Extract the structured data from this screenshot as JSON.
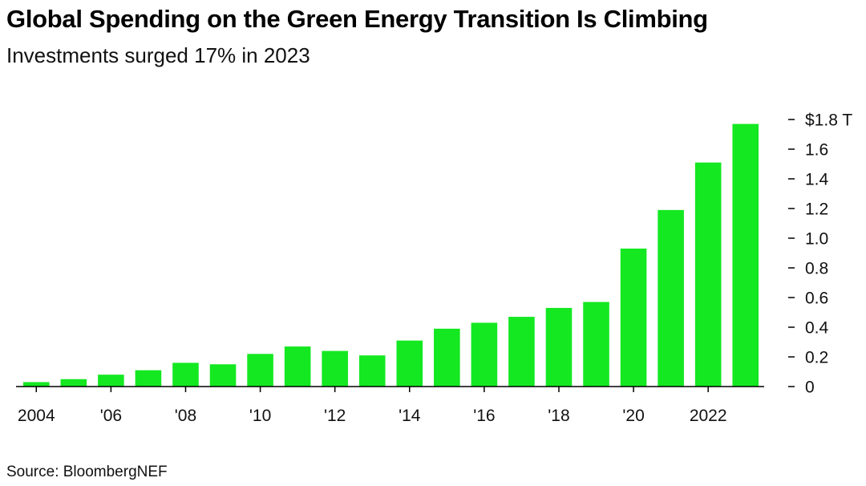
{
  "title": "Global Spending on the Green Energy Transition Is Climbing",
  "subtitle": "Investments surged 17% in 2023",
  "source": "Source: BloombergNEF",
  "colors": {
    "bar": "#14e821",
    "axis": "#000000",
    "text": "#111111"
  },
  "chart_data": {
    "type": "bar",
    "categories": [
      "2004",
      "2005",
      "2006",
      "2007",
      "2008",
      "2009",
      "2010",
      "2011",
      "2012",
      "2013",
      "2014",
      "2015",
      "2016",
      "2017",
      "2018",
      "2019",
      "2020",
      "2021",
      "2022",
      "2023"
    ],
    "values": [
      0.03,
      0.05,
      0.08,
      0.11,
      0.16,
      0.15,
      0.22,
      0.27,
      0.24,
      0.21,
      0.31,
      0.39,
      0.43,
      0.47,
      0.53,
      0.57,
      0.93,
      1.19,
      1.51,
      1.77
    ],
    "x_tick_labels": [
      "2004",
      "'06",
      "'08",
      "'10",
      "'12",
      "'14",
      "'16",
      "'18",
      "'20",
      "2022"
    ],
    "x_tick_indices": [
      0,
      2,
      4,
      6,
      8,
      10,
      12,
      14,
      16,
      18
    ],
    "y_ticks": [
      0,
      0.2,
      0.4,
      0.6,
      0.8,
      1.0,
      1.2,
      1.4,
      1.6,
      1.8
    ],
    "y_tick_labels": [
      "0",
      "0.2",
      "0.4",
      "0.6",
      "0.8",
      "1.0",
      "1.2",
      "1.4",
      "1.6",
      "$1.8 T"
    ],
    "ylim": [
      0,
      1.8
    ],
    "y_axis_position": "right",
    "grid": false,
    "xlabel": "",
    "ylabel": ""
  }
}
